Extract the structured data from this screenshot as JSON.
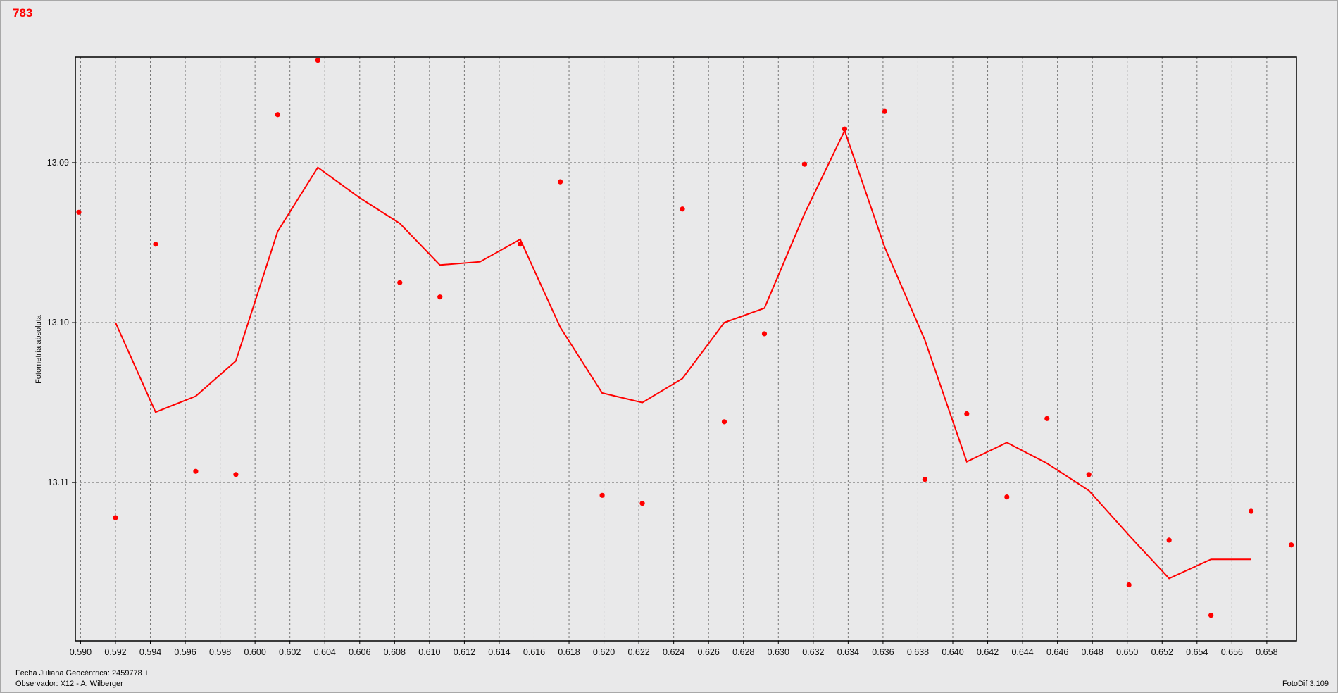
{
  "chart_data": {
    "type": "line",
    "title": "783",
    "xlabel": "Fecha Juliana Geocéntrica: 2459778 +",
    "ylabel": "Fotometría absoluta",
    "xlim": [
      0.5897,
      0.6597
    ],
    "ylim": [
      13.1199,
      13.0834
    ],
    "y_inverted": true,
    "grid": true,
    "x_ticks": [
      "0.590",
      "0.592",
      "0.594",
      "0.596",
      "0.598",
      "0.600",
      "0.602",
      "0.604",
      "0.606",
      "0.608",
      "0.610",
      "0.612",
      "0.614",
      "0.616",
      "0.618",
      "0.620",
      "0.622",
      "0.624",
      "0.626",
      "0.628",
      "0.630",
      "0.632",
      "0.634",
      "0.636",
      "0.638",
      "0.640",
      "0.642",
      "0.644",
      "0.646",
      "0.648",
      "0.650",
      "0.652",
      "0.654",
      "0.656",
      "0.658"
    ],
    "y_ticks": [
      "13.09",
      "13.10",
      "13.11"
    ],
    "series": [
      {
        "kind": "scatter",
        "color": "#ff0000",
        "x": [
          0.5899,
          0.592,
          0.5943,
          0.5966,
          0.5989,
          0.6013,
          0.6036,
          0.6083,
          0.6106,
          0.6152,
          0.6175,
          0.6199,
          0.6222,
          0.6245,
          0.6269,
          0.6292,
          0.6315,
          0.6338,
          0.6361,
          0.6384,
          0.6408,
          0.6431,
          0.6454,
          0.6478,
          0.6501,
          0.6524,
          0.6548,
          0.6571,
          0.6594
        ],
        "y": [
          13.0931,
          13.1122,
          13.0951,
          13.1093,
          13.1095,
          13.087,
          13.0836,
          13.0975,
          13.0984,
          13.0951,
          13.0912,
          13.1108,
          13.1113,
          13.0929,
          13.1062,
          13.1007,
          13.0901,
          13.0879,
          13.0868,
          13.1098,
          13.1057,
          13.1109,
          13.106,
          13.1095,
          13.1164,
          13.1136,
          13.1183,
          13.1118,
          13.1139
        ]
      },
      {
        "kind": "line",
        "color": "#ff0000",
        "x": [
          0.592,
          0.5943,
          0.5966,
          0.5989,
          0.6013,
          0.6036,
          0.606,
          0.6083,
          0.6106,
          0.6129,
          0.6152,
          0.6175,
          0.6199,
          0.6222,
          0.6245,
          0.6269,
          0.6292,
          0.6315,
          0.6338,
          0.6361,
          0.6384,
          0.6408,
          0.6431,
          0.6454,
          0.6478,
          0.6501,
          0.6524,
          0.6548,
          0.6571
        ],
        "y": [
          13.1,
          13.1056,
          13.1046,
          13.1024,
          13.0943,
          13.0903,
          13.0922,
          13.0938,
          13.0964,
          13.0962,
          13.0948,
          13.1003,
          13.1044,
          13.105,
          13.1035,
          13.1,
          13.0991,
          13.0932,
          13.088,
          13.0953,
          13.1011,
          13.1087,
          13.1075,
          13.1088,
          13.1105,
          13.1133,
          13.116,
          13.1148,
          13.1148
        ]
      }
    ]
  },
  "footer": {
    "observer": "Observador: X12 - A. Wilberger",
    "software": "FotoDif 3.109"
  }
}
